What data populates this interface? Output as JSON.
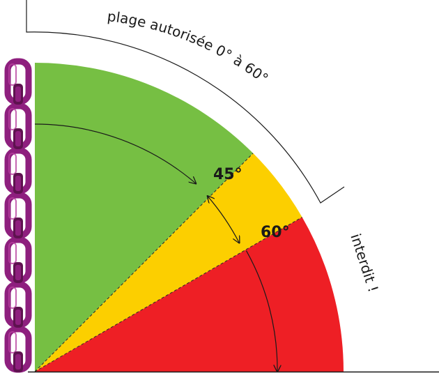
{
  "diagram": {
    "zones": [
      {
        "id": "allowed",
        "from_deg": 0,
        "to_deg": 45,
        "color": "#76bf43"
      },
      {
        "id": "caution",
        "from_deg": 45,
        "to_deg": 60,
        "color": "#fccf00"
      },
      {
        "id": "forbidden",
        "from_deg": 60,
        "to_deg": 90,
        "color": "#ee1f25"
      }
    ],
    "labels": {
      "angle_45": "45°",
      "angle_60": "60°",
      "allowed_range": "plage autorisée  0° à 60°",
      "forbidden": "interdit !"
    },
    "colors": {
      "chain": "#8e1f7e",
      "chain_highlight": "#b8409f",
      "chain_shadow": "#5e124f",
      "arrows": "#1a1a1a",
      "bracket": "#1a1a1a"
    }
  }
}
